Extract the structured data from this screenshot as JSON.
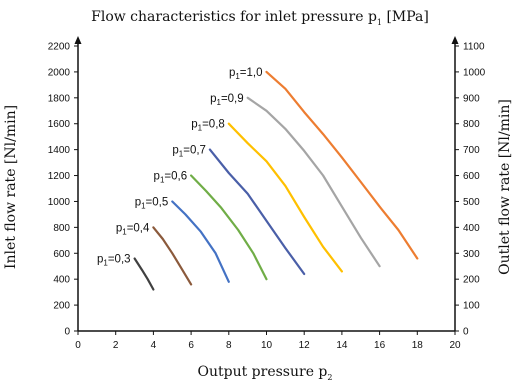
{
  "chart_data": {
    "type": "line",
    "title": "Flow characteristics for inlet pressure p",
    "title_sub": "1",
    "title_unit": "[MPa]",
    "xlabel": "Output pressure p",
    "xlabel_sub": "2",
    "ylabel": "Inlet flow rate [Nl/min]",
    "y2label": "Outlet flow rate [Nl/min]",
    "xlim": [
      0,
      20
    ],
    "ylim": [
      0,
      2200
    ],
    "y2lim": [
      0,
      1100
    ],
    "xticks": [
      0,
      2,
      4,
      6,
      8,
      10,
      12,
      14,
      16,
      18,
      20
    ],
    "yticks": [
      0,
      200,
      400,
      600,
      800,
      1000,
      1200,
      1400,
      1600,
      1800,
      2000,
      2200
    ],
    "y2ticks": [
      0,
      100,
      200,
      300,
      400,
      500,
      600,
      700,
      800,
      900,
      1000,
      1100
    ],
    "grid": false,
    "series": [
      {
        "name": "p",
        "sub": "1",
        "value": "=0,3",
        "color": "#404040",
        "points": [
          [
            3,
            560
          ],
          [
            3.4,
            470
          ],
          [
            3.7,
            400
          ],
          [
            4,
            320
          ]
        ]
      },
      {
        "name": "p",
        "sub": "1",
        "value": "=0,4",
        "color": "#8b5a3c",
        "points": [
          [
            4,
            800
          ],
          [
            4.5,
            710
          ],
          [
            5,
            600
          ],
          [
            5.5,
            480
          ],
          [
            6,
            360
          ]
        ]
      },
      {
        "name": "p",
        "sub": "1",
        "value": "=0,5",
        "color": "#4472c4",
        "points": [
          [
            5,
            1000
          ],
          [
            5.7,
            900
          ],
          [
            6.5,
            770
          ],
          [
            7.3,
            600
          ],
          [
            8,
            380
          ]
        ]
      },
      {
        "name": "p",
        "sub": "1",
        "value": "=0,6",
        "color": "#70ad47",
        "points": [
          [
            6,
            1200
          ],
          [
            6.8,
            1080
          ],
          [
            7.6,
            950
          ],
          [
            8.5,
            780
          ],
          [
            9.3,
            600
          ],
          [
            10,
            400
          ]
        ]
      },
      {
        "name": "p",
        "sub": "1",
        "value": "=0,7",
        "color": "#4a5fa8",
        "points": [
          [
            7,
            1400
          ],
          [
            8,
            1220
          ],
          [
            9,
            1060
          ],
          [
            10,
            850
          ],
          [
            11,
            640
          ],
          [
            12,
            440
          ]
        ]
      },
      {
        "name": "p",
        "sub": "1",
        "value": "=0,8",
        "color": "#ffc000",
        "points": [
          [
            8,
            1600
          ],
          [
            9,
            1450
          ],
          [
            10,
            1310
          ],
          [
            11,
            1120
          ],
          [
            12,
            880
          ],
          [
            13,
            650
          ],
          [
            14,
            460
          ]
        ]
      },
      {
        "name": "p",
        "sub": "1",
        "value": "=0,9",
        "color": "#a5a5a5",
        "points": [
          [
            9,
            1800
          ],
          [
            10,
            1700
          ],
          [
            11,
            1560
          ],
          [
            12,
            1390
          ],
          [
            13,
            1200
          ],
          [
            14,
            960
          ],
          [
            15,
            720
          ],
          [
            16,
            500
          ]
        ]
      },
      {
        "name": "p",
        "sub": "1",
        "value": "=1,0",
        "color": "#ed7d31",
        "points": [
          [
            10,
            2000
          ],
          [
            11,
            1870
          ],
          [
            12,
            1690
          ],
          [
            13,
            1520
          ],
          [
            14,
            1340
          ],
          [
            15,
            1150
          ],
          [
            16,
            960
          ],
          [
            17,
            780
          ],
          [
            18,
            560
          ]
        ]
      }
    ]
  }
}
